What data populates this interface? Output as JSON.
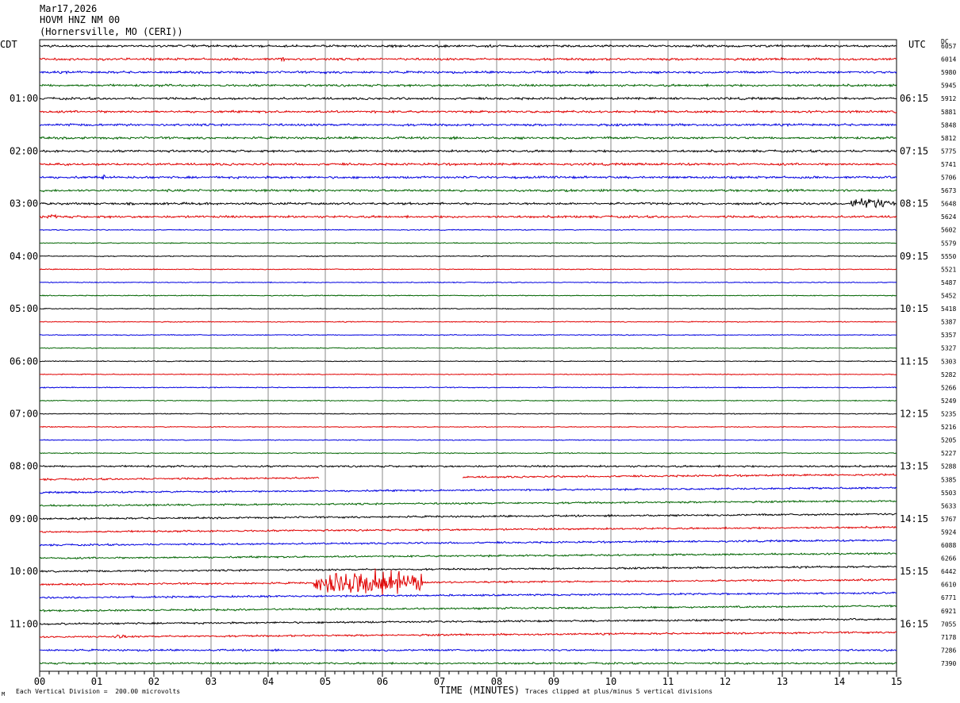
{
  "header": {
    "date": "Mar17,2026",
    "station": "HOVM HNZ NM 00",
    "location": "(Hornersville, MO (CERI))"
  },
  "corner_labels": {
    "left": "CDT",
    "right": "UTC",
    "dc": "DC"
  },
  "footer": {
    "left_note": "Each Vertical Division =  200.00 microvolts",
    "right_note": "Traces clipped at plus/minus 5 vertical divisions",
    "mark": "M"
  },
  "chart_data": {
    "type": "line",
    "title": "",
    "xlabel": "TIME (MINUTES)",
    "ylabel": "",
    "xlim": [
      0,
      15
    ],
    "x_ticks": [
      "00",
      "01",
      "02",
      "03",
      "04",
      "05",
      "06",
      "07",
      "08",
      "09",
      "10",
      "11",
      "12",
      "13",
      "14",
      "15"
    ],
    "trace_count": 48,
    "trace_colors": [
      "#000000",
      "#e00000",
      "#0000e0",
      "#006400"
    ],
    "grid": true,
    "left_time_labels": [
      {
        "trace": 4,
        "label": "01:00"
      },
      {
        "trace": 8,
        "label": "02:00"
      },
      {
        "trace": 12,
        "label": "03:00"
      },
      {
        "trace": 16,
        "label": "04:00"
      },
      {
        "trace": 20,
        "label": "05:00"
      },
      {
        "trace": 24,
        "label": "06:00"
      },
      {
        "trace": 28,
        "label": "07:00"
      },
      {
        "trace": 32,
        "label": "08:00"
      },
      {
        "trace": 36,
        "label": "09:00"
      },
      {
        "trace": 40,
        "label": "10:00"
      },
      {
        "trace": 44,
        "label": "11:00"
      }
    ],
    "right_time_labels": [
      {
        "trace": 4,
        "label": "06:15"
      },
      {
        "trace": 8,
        "label": "07:15"
      },
      {
        "trace": 12,
        "label": "08:15"
      },
      {
        "trace": 16,
        "label": "09:15"
      },
      {
        "trace": 20,
        "label": "10:15"
      },
      {
        "trace": 24,
        "label": "11:15"
      },
      {
        "trace": 28,
        "label": "12:15"
      },
      {
        "trace": 32,
        "label": "13:15"
      },
      {
        "trace": 36,
        "label": "14:15"
      },
      {
        "trace": 40,
        "label": "15:15"
      },
      {
        "trace": 44,
        "label": "16:15"
      }
    ],
    "dc_offsets": [
      "6057",
      "6014",
      "5980",
      "5945",
      "5912",
      "5881",
      "5848",
      "5812",
      "5775",
      "5741",
      "5706",
      "5673",
      "5648",
      "5624",
      "5602",
      "5579",
      "5550",
      "5521",
      "5487",
      "5452",
      "5418",
      "5387",
      "5357",
      "5327",
      "5303",
      "5282",
      "5266",
      "5249",
      "5235",
      "5216",
      "5205",
      "5227",
      "5288",
      "5385",
      "5503",
      "5633",
      "5767",
      "5924",
      "6088",
      "6266",
      "6442",
      "6610",
      "6771",
      "6921",
      "7055",
      "7178",
      "7286",
      "7390"
    ],
    "events": [
      {
        "trace": 41,
        "start_min": 4.8,
        "end_min": 6.7,
        "peak_min": 5.8,
        "amplitude_div": 5
      },
      {
        "trace": 12,
        "start_min": 14.2,
        "end_min": 15.0,
        "peak_min": 14.5,
        "amplitude_div": 2
      },
      {
        "trace": 1,
        "start_min": 4.2,
        "end_min": 4.3,
        "peak_min": 4.25,
        "amplitude_div": 1
      },
      {
        "trace": 10,
        "start_min": 1.1,
        "end_min": 1.15,
        "peak_min": 1.12,
        "amplitude_div": 1.2
      },
      {
        "trace": 13,
        "start_min": 0.2,
        "end_min": 0.3,
        "peak_min": 0.25,
        "amplitude_div": 0.8
      },
      {
        "trace": 45,
        "start_min": 1.3,
        "end_min": 1.5,
        "peak_min": 1.4,
        "amplitude_div": 0.6
      }
    ],
    "gaps": [
      {
        "trace": 33,
        "start_min": 4.9,
        "end_min": 7.4
      }
    ]
  }
}
